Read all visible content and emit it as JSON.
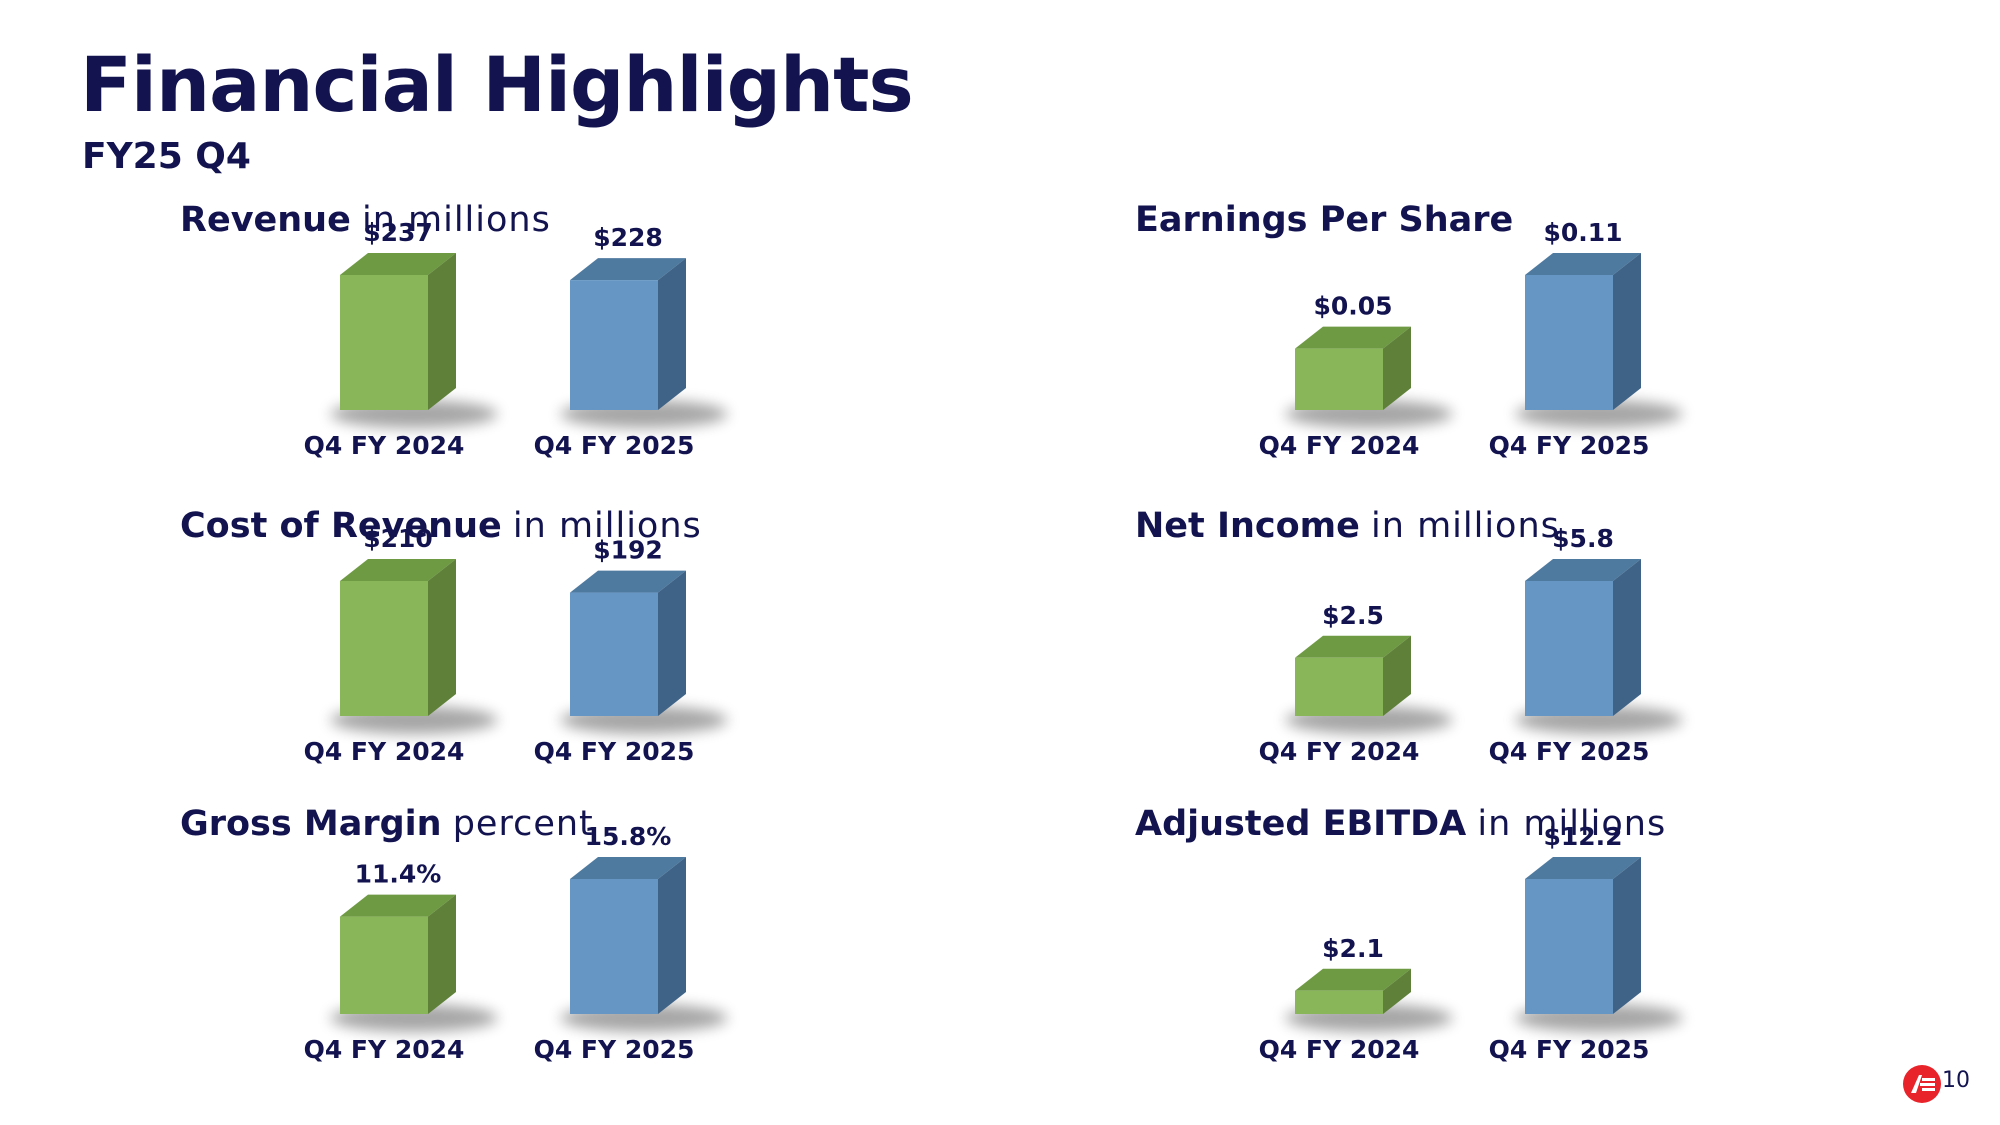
{
  "slide": {
    "title": "Financial Highlights",
    "subtitle": "FY25 Q4",
    "page_number": "10"
  },
  "colors": {
    "prior_face": "#8ab65a",
    "prior_top": "#6f9a44",
    "prior_side": "#5e8038",
    "current_face": "#6596c4",
    "current_top": "#4f7aa0",
    "current_side": "#3f6386",
    "text": "#12134f",
    "logo": "#e8232a"
  },
  "panels": [
    {
      "heading": "Revenue",
      "heading_suffix": "in millions"
    },
    {
      "heading": "Earnings Per Share",
      "heading_suffix": ""
    },
    {
      "heading": "Cost of Revenue",
      "heading_suffix": "in millions"
    },
    {
      "heading": "Net Income",
      "heading_suffix": "in millions"
    },
    {
      "heading": "Gross Margin",
      "heading_suffix": "percent"
    },
    {
      "heading": "Adjusted EBITDA",
      "heading_suffix": "in millions"
    }
  ],
  "chart_data": [
    {
      "type": "bar",
      "title": "Revenue in millions",
      "categories": [
        "Q4 FY 2024",
        "Q4 FY 2025"
      ],
      "values": [
        237,
        228
      ],
      "labels": [
        "$237",
        "$228"
      ]
    },
    {
      "type": "bar",
      "title": "Earnings Per Share",
      "categories": [
        "Q4 FY 2024",
        "Q4 FY 2025"
      ],
      "values": [
        0.05,
        0.11
      ],
      "labels": [
        "$0.05",
        "$0.11"
      ]
    },
    {
      "type": "bar",
      "title": "Cost of Revenue in millions",
      "categories": [
        "Q4 FY 2024",
        "Q4 FY 2025"
      ],
      "values": [
        210,
        192
      ],
      "labels": [
        "$210",
        "$192"
      ]
    },
    {
      "type": "bar",
      "title": "Net Income in millions",
      "categories": [
        "Q4 FY 2024",
        "Q4 FY 2025"
      ],
      "values": [
        2.5,
        5.8
      ],
      "labels": [
        "$2.5",
        "$5.8"
      ]
    },
    {
      "type": "bar",
      "title": "Gross Margin percent",
      "categories": [
        "Q4 FY 2024",
        "Q4 FY 2025"
      ],
      "values": [
        11.4,
        15.8
      ],
      "labels": [
        "11.4%",
        "15.8%"
      ]
    },
    {
      "type": "bar",
      "title": "Adjusted EBITDA in millions",
      "categories": [
        "Q4 FY 2024",
        "Q4 FY 2025"
      ],
      "values": [
        2.1,
        12.2
      ],
      "labels": [
        "$2.1",
        "$12.2"
      ]
    }
  ]
}
